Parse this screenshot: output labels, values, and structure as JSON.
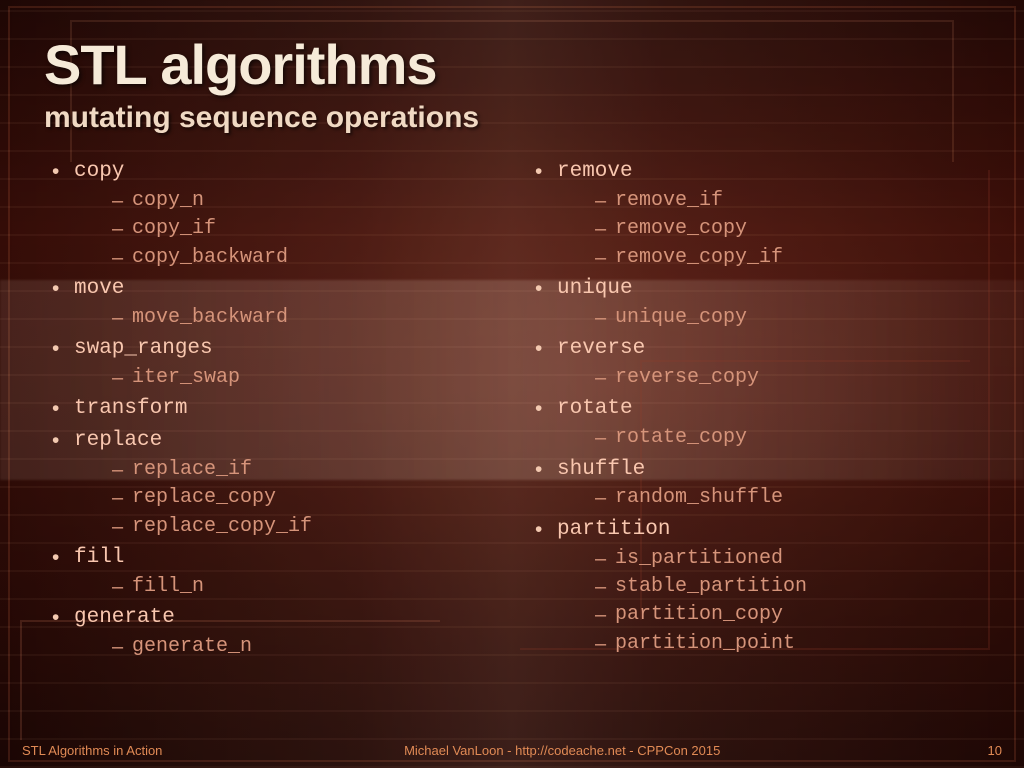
{
  "colors": {
    "title": "#f6ead8",
    "subtitle": "#f0d9c3",
    "item": "#f9c7af",
    "subitem": "#d6947a",
    "footer": "#e08a55",
    "background_dark": "#1f0604",
    "background_mid": "#3a0e08",
    "background_light": "#5a1a10"
  },
  "typography": {
    "title_fontsize": 56,
    "subtitle_fontsize": 30,
    "item_fontsize": 21,
    "subitem_fontsize": 20,
    "footer_fontsize": 13,
    "mono_family": "Courier New"
  },
  "header": {
    "title": "STL algorithms",
    "subtitle": "mutating sequence operations"
  },
  "columns": [
    {
      "items": [
        {
          "label": "copy",
          "sub": [
            "copy_n",
            "copy_if",
            "copy_backward"
          ]
        },
        {
          "label": "move",
          "sub": [
            "move_backward"
          ]
        },
        {
          "label": "swap_ranges",
          "sub": [
            "iter_swap"
          ]
        },
        {
          "label": "transform",
          "sub": []
        },
        {
          "label": "replace",
          "sub": [
            "replace_if",
            "replace_copy",
            "replace_copy_if"
          ]
        },
        {
          "label": "fill",
          "sub": [
            "fill_n"
          ]
        },
        {
          "label": "generate",
          "sub": [
            "generate_n"
          ]
        }
      ]
    },
    {
      "items": [
        {
          "label": "remove",
          "sub": [
            "remove_if",
            "remove_copy",
            "remove_copy_if"
          ]
        },
        {
          "label": "unique",
          "sub": [
            "unique_copy"
          ]
        },
        {
          "label": "reverse",
          "sub": [
            "reverse_copy"
          ]
        },
        {
          "label": "rotate",
          "sub": [
            "rotate_copy"
          ]
        },
        {
          "label": "shuffle",
          "sub": [
            "random_shuffle"
          ]
        },
        {
          "label": "partition",
          "sub": [
            "is_partitioned",
            "stable_partition",
            "partition_copy",
            "partition_point"
          ]
        }
      ]
    }
  ],
  "footer": {
    "left": "STL Algorithms in Action",
    "center": "Michael VanLoon - http://codeache.net - CPPCon 2015",
    "page": "10"
  }
}
